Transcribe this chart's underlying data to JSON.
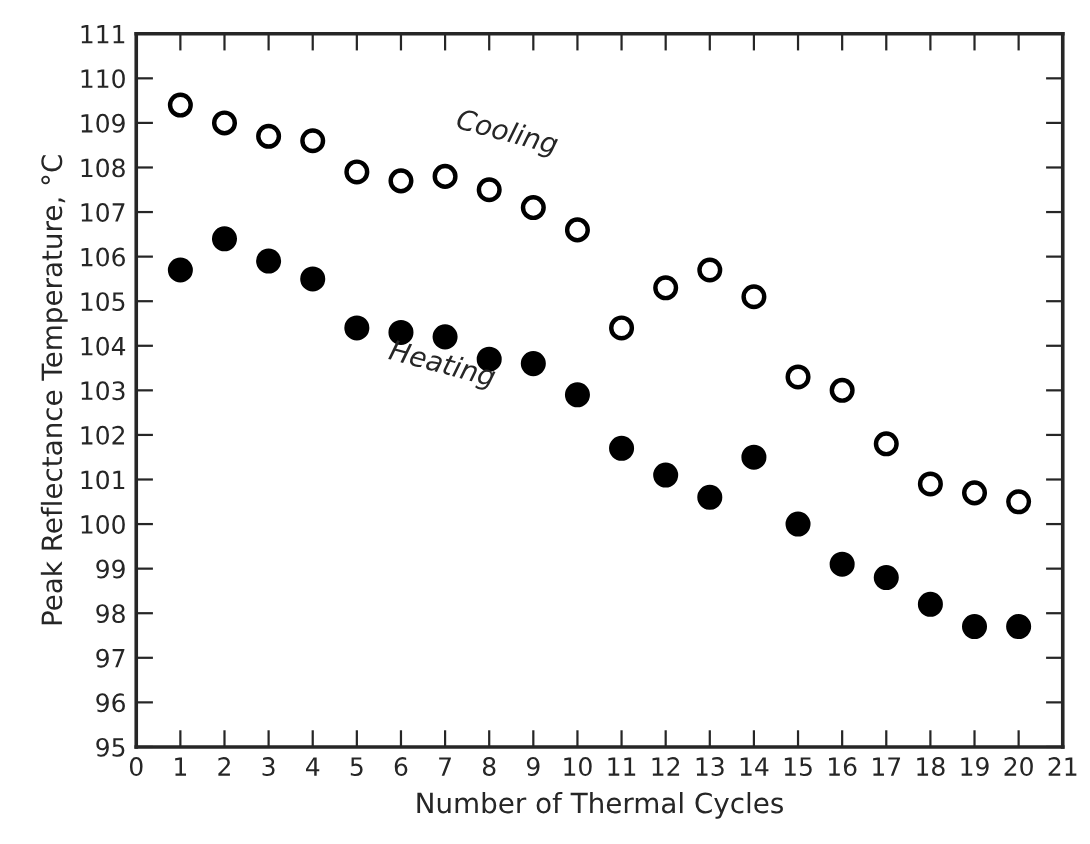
{
  "chart_data": {
    "type": "scatter",
    "xlabel": "Number of Thermal Cycles",
    "ylabel": "Peak Reflectance Temperature, °C",
    "x": [
      1,
      2,
      3,
      4,
      5,
      6,
      7,
      8,
      9,
      10,
      11,
      12,
      13,
      14,
      15,
      16,
      17,
      18,
      19,
      20
    ],
    "series": [
      {
        "color": "#ffffff",
        "values": [
          109.4,
          109.0,
          108.7,
          108.6,
          107.9,
          107.7,
          107.8,
          107.5,
          107.1,
          106.6,
          104.4,
          105.3,
          105.7,
          105.1,
          103.3,
          103.0,
          101.8,
          100.9,
          100.7,
          100.5
        ]
      },
      {
        "color": "#000000",
        "values": [
          105.7,
          106.4,
          105.9,
          105.5,
          104.4,
          104.3,
          104.2,
          103.7,
          103.6,
          102.9,
          101.7,
          101.1,
          100.6,
          101.5,
          100.0,
          99.1,
          98.8,
          98.2,
          97.7,
          97.7
        ]
      }
    ],
    "annotations": [
      "Cooling",
      "Heating"
    ],
    "xlim": [
      0,
      21
    ],
    "xticks": [
      0,
      1,
      2,
      3,
      4,
      5,
      6,
      7,
      8,
      9,
      10,
      11,
      12,
      13,
      14,
      15,
      16,
      17,
      18,
      19,
      20,
      21
    ],
    "ylim": [
      95,
      111
    ],
    "yticks": [
      95,
      96,
      97,
      98,
      99,
      100,
      101,
      102,
      103,
      104,
      105,
      106,
      107,
      108,
      109,
      110,
      111
    ],
    "marker": "circle",
    "grid": false,
    "legend": false
  }
}
